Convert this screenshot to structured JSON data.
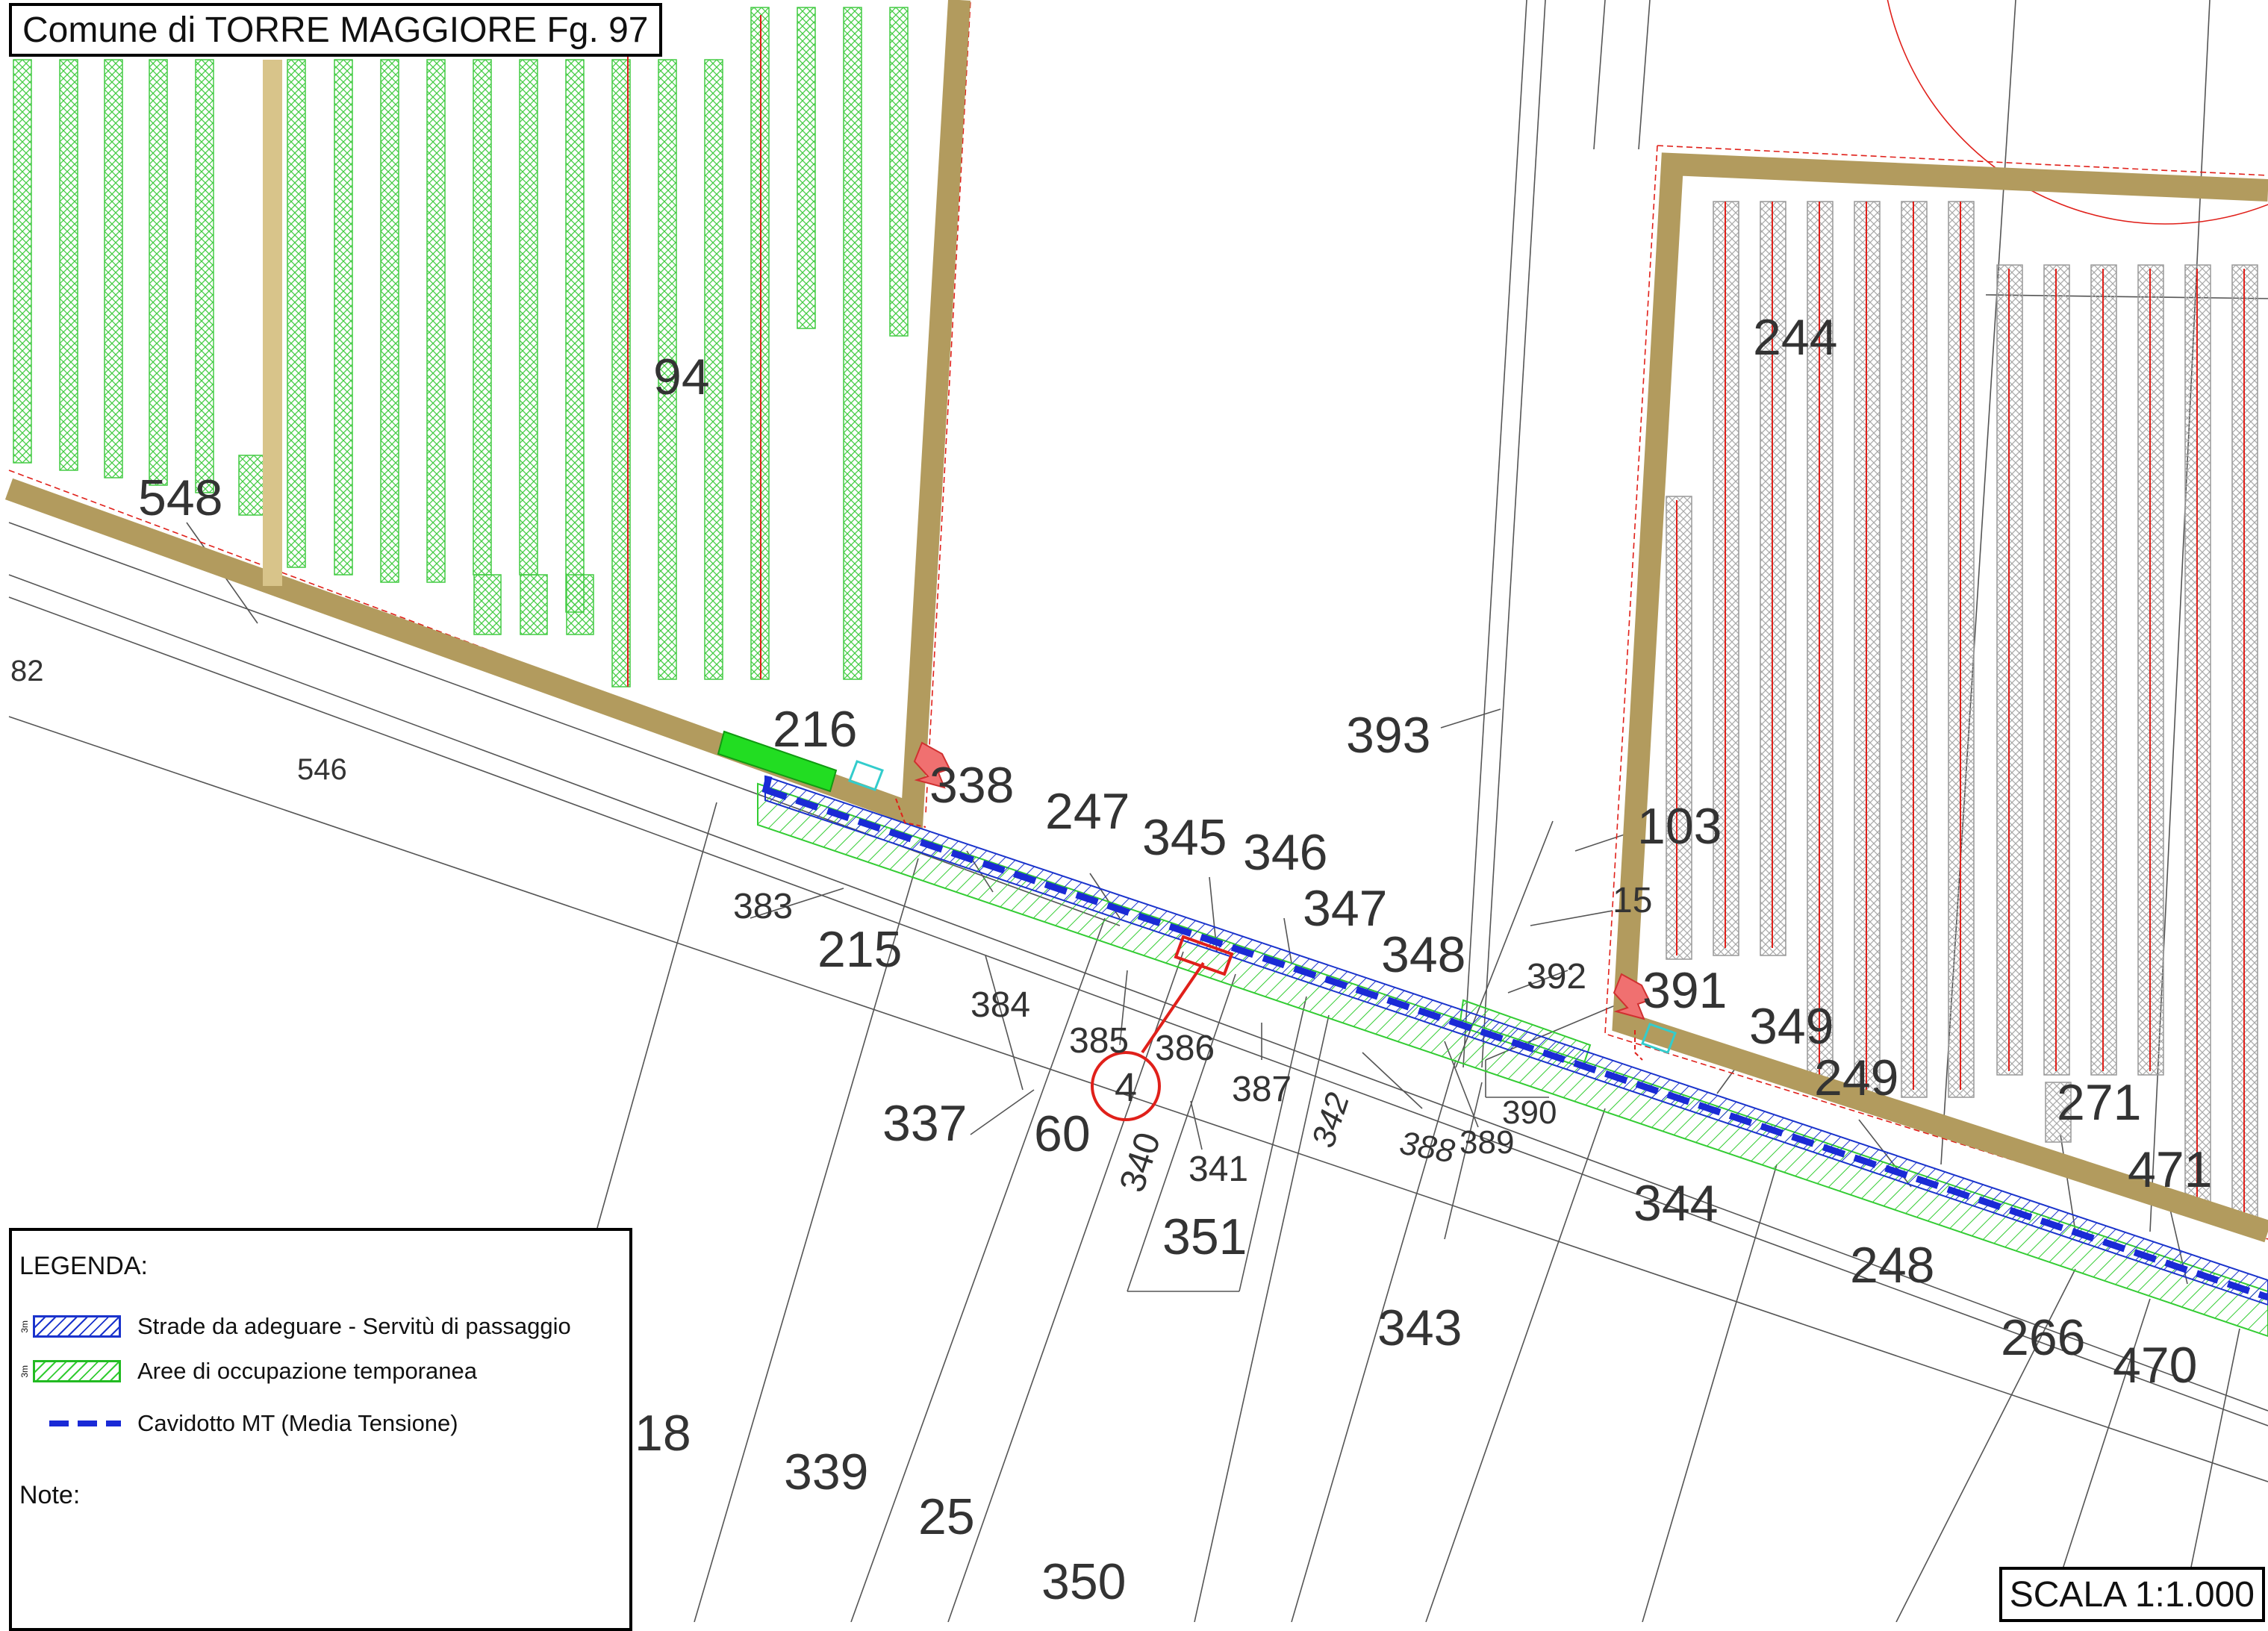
{
  "header": {
    "title": "Comune di TORRE MAGGIORE Fg. 97"
  },
  "footer": {
    "scale": "SCALA 1:1.000"
  },
  "legend": {
    "title": "LEGENDA:",
    "width_tag": "3m",
    "items": [
      {
        "label": "Strade da adeguare - Servitù di passaggio",
        "color": "#1a33cc"
      },
      {
        "label": "Aree di occupazione temporanea",
        "color": "#33cc33"
      },
      {
        "label": "Cavidotto MT (Media Tensione)",
        "color": "#1a2ad6"
      }
    ],
    "note": "Note:"
  },
  "marker": {
    "label": "4",
    "color": "#e0201a"
  },
  "colors": {
    "road": "#b29b5e",
    "panels_left": "#44cc44",
    "panels_right": "#999999",
    "cable": "#1a2ad6"
  },
  "parcels": {
    "p94": "94",
    "p548": "548",
    "p82": "82",
    "p546": "546",
    "p216": "216",
    "p338": "338",
    "p247": "247",
    "p345": "345",
    "p346": "346",
    "p393": "393",
    "p103": "103",
    "p15": "15",
    "p347": "347",
    "p348": "348",
    "p392": "392",
    "p391": "391",
    "p349": "349",
    "p249": "249",
    "p271": "271",
    "p471": "471",
    "p244": "244",
    "p383": "383",
    "p215": "215",
    "p384": "384",
    "p385": "385",
    "p386": "386",
    "p387": "387",
    "p342": "342",
    "p388": "388",
    "p389": "389",
    "p390": "390",
    "p337": "337",
    "p60": "60",
    "p340": "340",
    "p341": "341",
    "p351": "351",
    "p344": "344",
    "p248": "248",
    "p343": "343",
    "p266": "266",
    "p470": "470",
    "p18": "18",
    "p339": "339",
    "p25": "25",
    "p350": "350"
  }
}
